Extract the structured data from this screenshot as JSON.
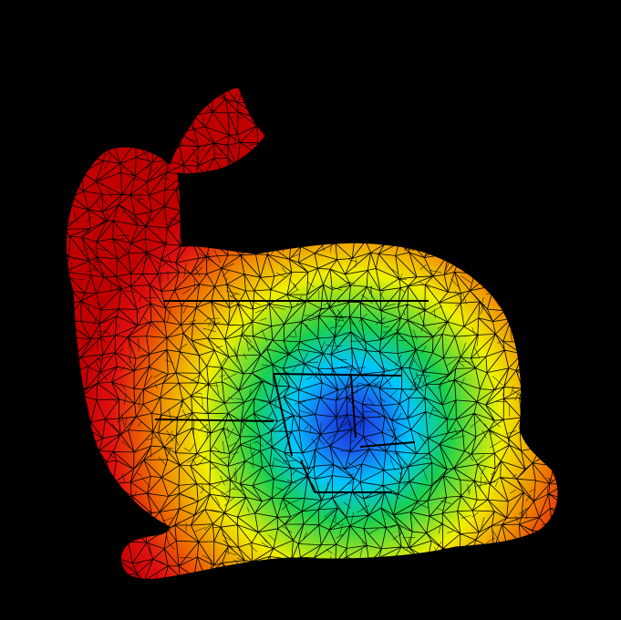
{
  "scene": {
    "background_color": "#000000",
    "model": "bunny",
    "render_mode": "wireframe-over-heatmap",
    "wire_color": "#000000",
    "colormap": [
      "#1030d0",
      "#00c8ff",
      "#18d050",
      "#f0f000",
      "#f08000",
      "#e01010"
    ]
  }
}
